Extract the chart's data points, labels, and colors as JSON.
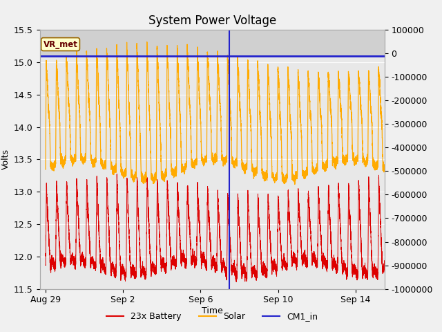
{
  "title": "System Power Voltage",
  "xlabel": "Time",
  "ylabel": "Volts",
  "ylim_left": [
    11.5,
    15.5
  ],
  "ylim_right": [
    -1000000,
    100000
  ],
  "background_color": "#f0f0f0",
  "plot_bg_color": "#e8e8e8",
  "shade_ymin": 15.1,
  "shade_ymax": 15.55,
  "shade_color": "#d0d0d0",
  "hline_y": 15.1,
  "hline_color": "#2222cc",
  "hline_linewidth": 2,
  "vline_x_days": 9.5,
  "vline_color": "#2222cc",
  "vline_linewidth": 1.5,
  "vr_met_label": "VR_met",
  "legend_entries": [
    "23x Battery",
    "Solar",
    "CM1_in"
  ],
  "bat_color": "#dd0000",
  "sol_color": "#ffaa00",
  "cm1_color": "#2222cc",
  "num_days": 18,
  "title_fontsize": 12,
  "axis_fontsize": 9,
  "tick_fontsize": 9,
  "xlim": [
    -0.3,
    17.5
  ],
  "xtick_positions": [
    0,
    4,
    8,
    12,
    16
  ],
  "xtick_labels": [
    "Aug 29",
    "Sep 2",
    "Sep 6",
    "Sep 10",
    "Sep 14"
  ],
  "yticks_left": [
    11.5,
    12.0,
    12.5,
    13.0,
    13.5,
    14.0,
    14.5,
    15.0,
    15.5
  ],
  "yticks_right": [
    100000,
    0,
    -100000,
    -200000,
    -300000,
    -400000,
    -500000,
    -600000,
    -700000,
    -800000,
    -900000,
    -1000000
  ]
}
